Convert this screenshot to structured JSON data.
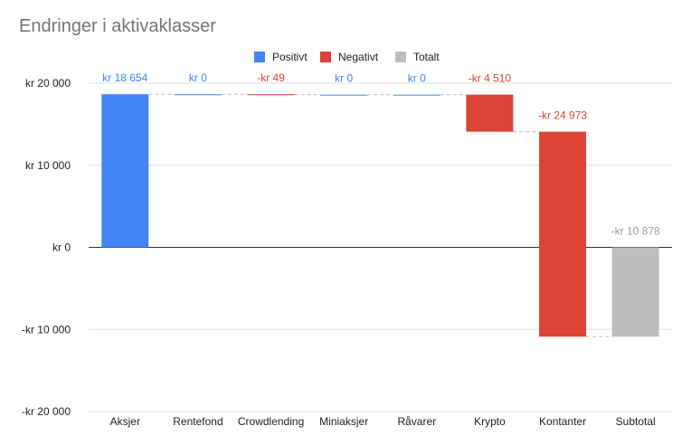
{
  "chart_data": {
    "type": "waterfall",
    "title": "Endringer i aktivaklasser",
    "xlabel": "",
    "ylabel": "",
    "ylim": [
      -20000,
      20000
    ],
    "yticks": [
      20000,
      10000,
      0,
      -10000,
      -20000
    ],
    "ytick_labels": [
      "kr  20 000",
      "kr  10 000",
      "kr   0",
      "-kr  10 000",
      "-kr  20 000"
    ],
    "grid": true,
    "legend_position": "top",
    "legend": [
      {
        "name": "Positivt",
        "color": "#4285f4"
      },
      {
        "name": "Negativt",
        "color": "#db4437"
      },
      {
        "name": "Totalt",
        "color": "#bdbdbd"
      }
    ],
    "categories": [
      "Aksjer",
      "Rentefond",
      "Crowdlending",
      "Miniaksjer",
      "Råvarer",
      "Krypto",
      "Kontanter",
      "Subtotal"
    ],
    "values": [
      18654,
      0,
      -49,
      0,
      0,
      -4510,
      -24973,
      -10878
    ],
    "kinds": [
      "positive",
      "positive",
      "negative",
      "positive",
      "positive",
      "negative",
      "negative",
      "total"
    ],
    "data_labels": [
      "kr  18 654",
      "kr   0",
      "-kr   49",
      "kr   0",
      "kr   0",
      "-kr  4 510",
      "-kr  24 973",
      "-kr  10 878"
    ],
    "colors": {
      "positive": "#4285f4",
      "negative": "#db4437",
      "total": "#bdbdbd",
      "positive_label": "#4285f4",
      "negative_label": "#db4437",
      "total_label": "#9e9e9e"
    }
  }
}
